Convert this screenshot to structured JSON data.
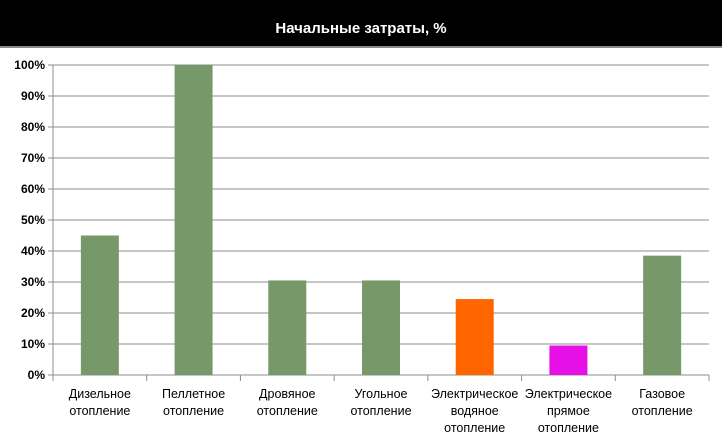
{
  "chart_data": {
    "type": "bar",
    "title": "Начальные затраты, %",
    "xlabel": "",
    "ylabel": "",
    "ylim": [
      0,
      100
    ],
    "y_ticks": [
      "0%",
      "10%",
      "20%",
      "30%",
      "40%",
      "50%",
      "60%",
      "70%",
      "80%",
      "90%",
      "100%"
    ],
    "grid": true,
    "legend": "none",
    "categories": [
      [
        "Дизельное",
        "отопление"
      ],
      [
        "Пеллетное",
        "отопление"
      ],
      [
        "Дровяное",
        "отопление"
      ],
      [
        "Угольное",
        "отопление"
      ],
      [
        "Электрическое",
        "водяное",
        "отопление"
      ],
      [
        "Электрическое",
        "прямое",
        "отопление"
      ],
      [
        "Газовое",
        "отопление"
      ]
    ],
    "values": [
      45,
      100,
      30.5,
      30.5,
      24.5,
      9.5,
      38.5
    ],
    "colors": [
      "#77996a",
      "#77996a",
      "#77996a",
      "#77996a",
      "#ff6600",
      "#e60fe6",
      "#77996a"
    ]
  }
}
